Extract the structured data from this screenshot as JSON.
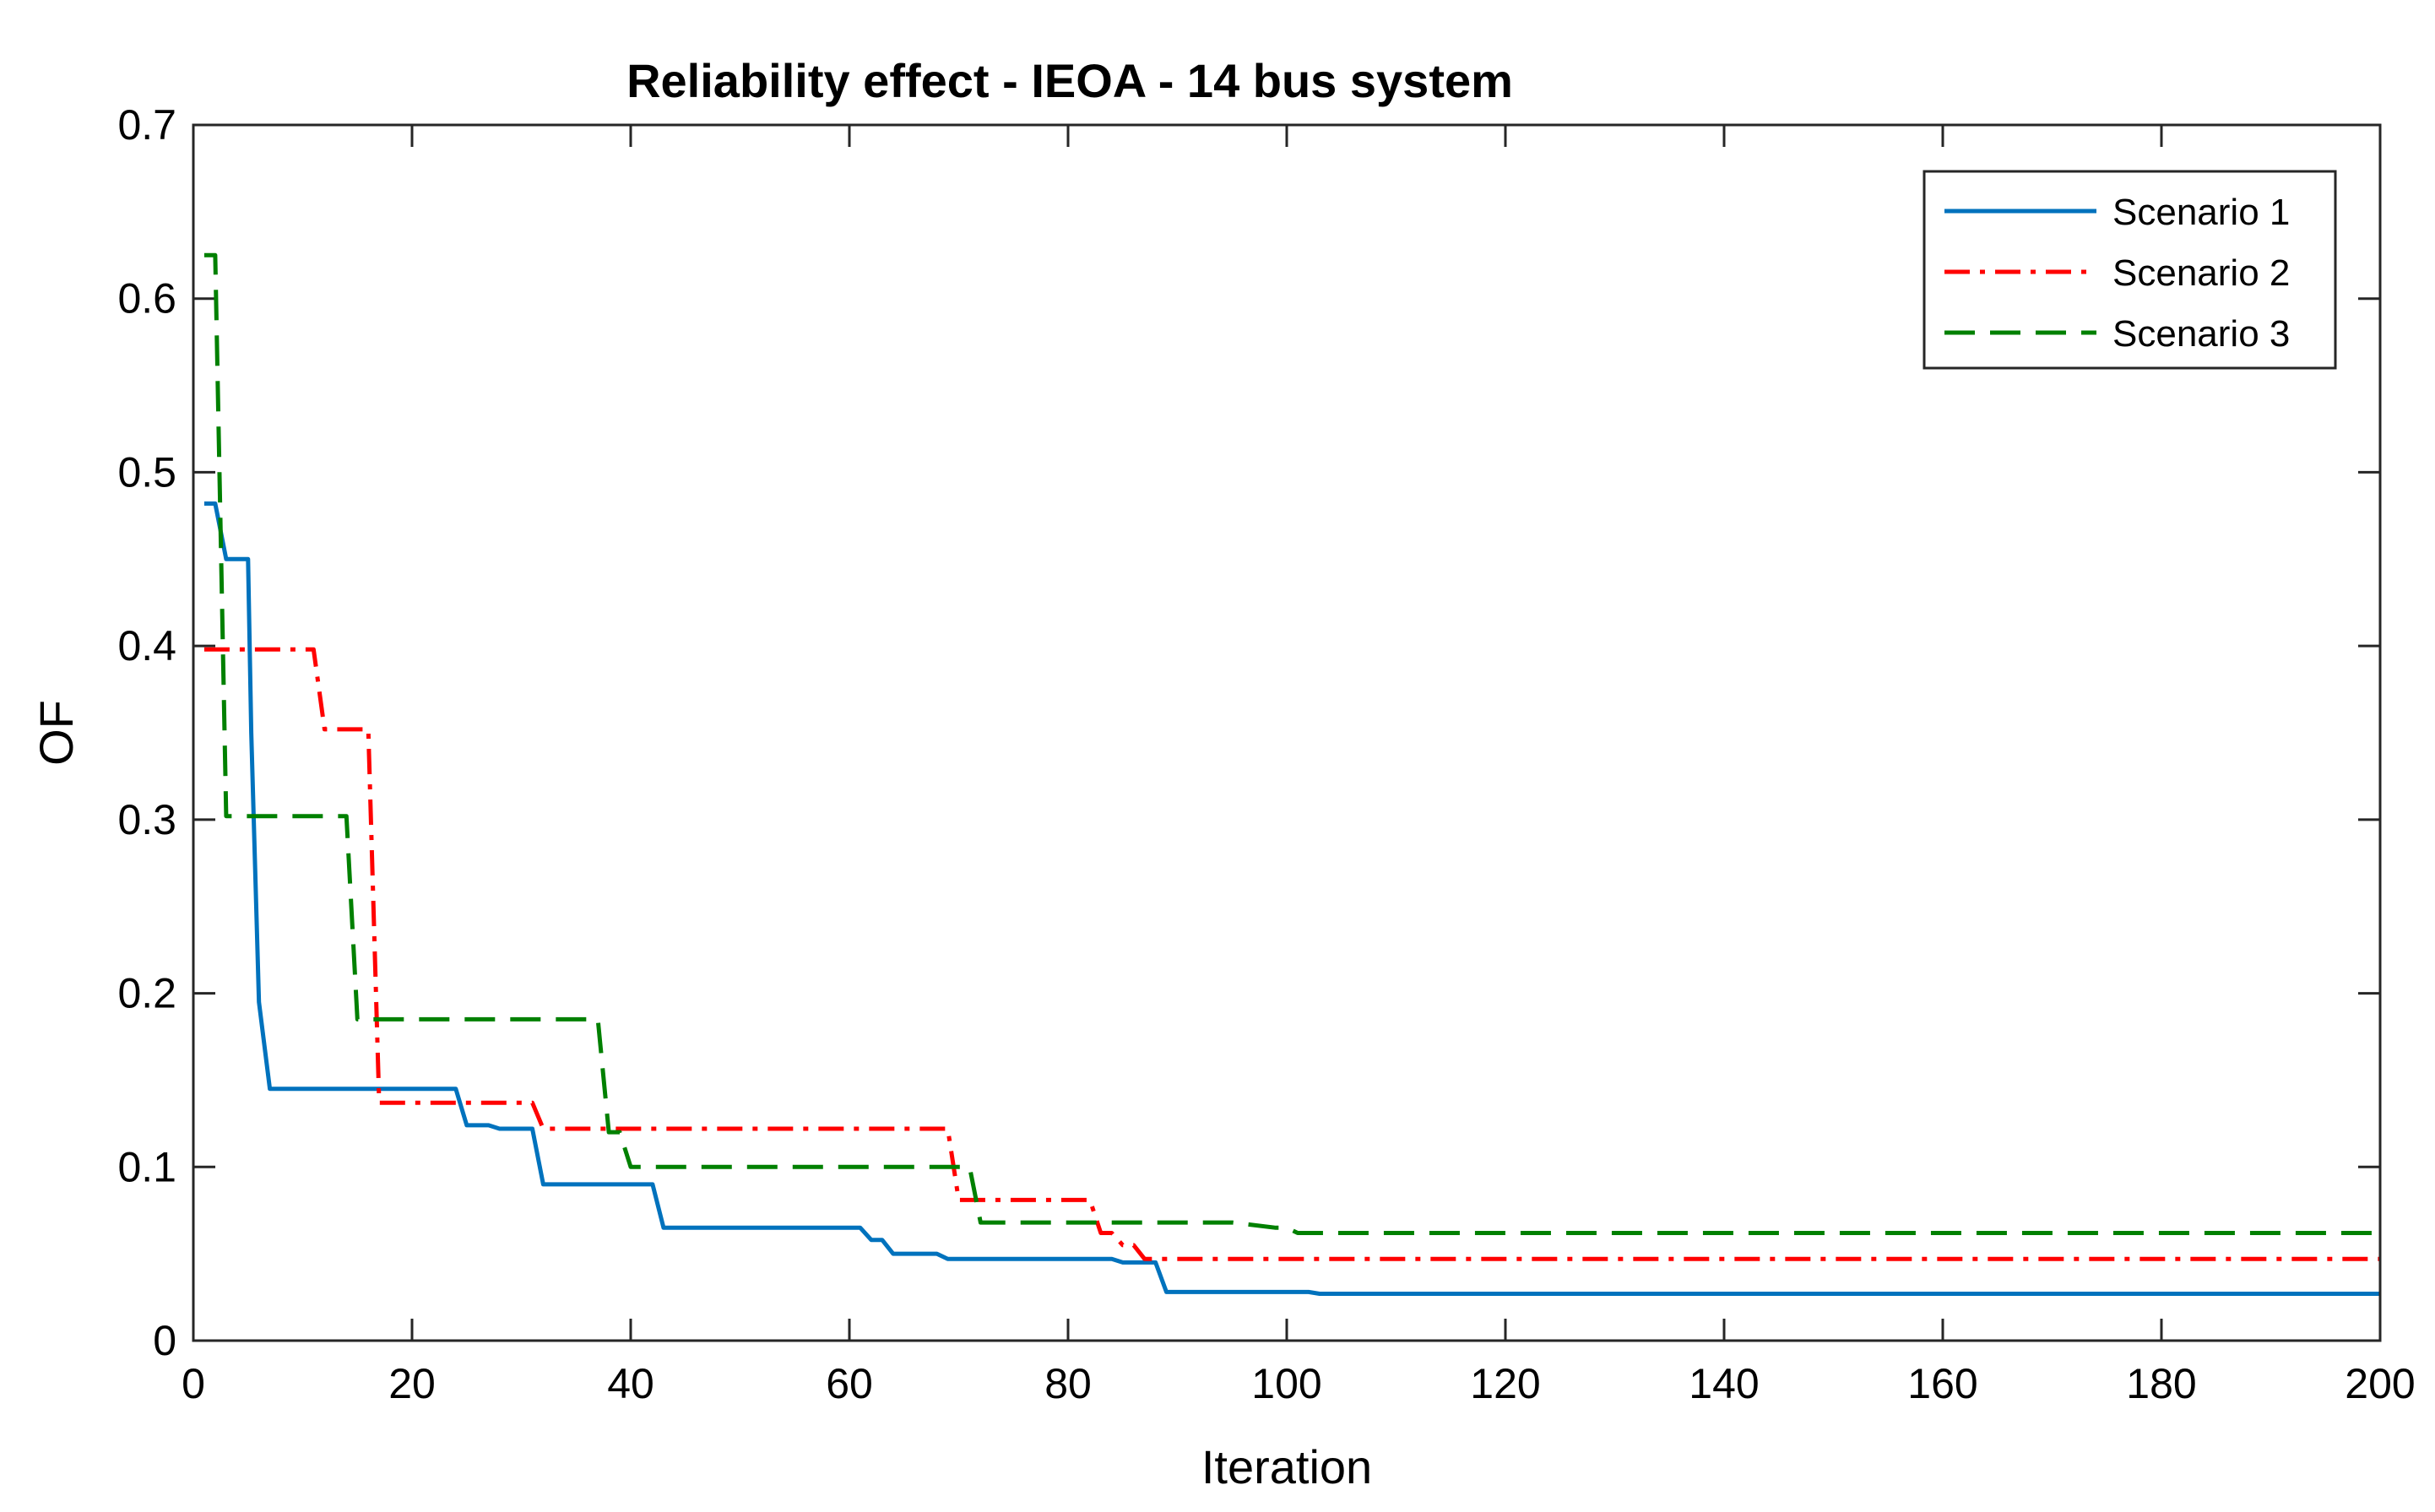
{
  "chart_data": {
    "type": "line",
    "title": "Reliability effect - IEOA - 14 bus system",
    "xlabel": "Iteration",
    "ylabel": "OF",
    "xlim": [
      0,
      200
    ],
    "ylim": [
      0,
      0.7
    ],
    "xticks": [
      0,
      20,
      40,
      60,
      80,
      100,
      120,
      140,
      160,
      180,
      200
    ],
    "yticks": [
      0,
      0.1,
      0.2,
      0.3,
      0.4,
      0.5,
      0.6,
      0.7
    ],
    "xtick_labels": [
      "0",
      "20",
      "40",
      "60",
      "80",
      "100",
      "120",
      "140",
      "160",
      "180",
      "200"
    ],
    "ytick_labels": [
      "0",
      "0.1",
      "0.2",
      "0.3",
      "0.4",
      "0.5",
      "0.6",
      "0.7"
    ],
    "grid": false,
    "legend_position": "top-right",
    "series": [
      {
        "name": "Scenario 1",
        "color": "#0072BD",
        "style": "solid",
        "points": [
          [
            1,
            0.482
          ],
          [
            2,
            0.482
          ],
          [
            3,
            0.45
          ],
          [
            5,
            0.45
          ],
          [
            5.3,
            0.35
          ],
          [
            6,
            0.195
          ],
          [
            7,
            0.145
          ],
          [
            24,
            0.145
          ],
          [
            25,
            0.124
          ],
          [
            27,
            0.124
          ],
          [
            28,
            0.122
          ],
          [
            31,
            0.122
          ],
          [
            32,
            0.09
          ],
          [
            42,
            0.09
          ],
          [
            43,
            0.065
          ],
          [
            61,
            0.065
          ],
          [
            62,
            0.058
          ],
          [
            63,
            0.058
          ],
          [
            64,
            0.05
          ],
          [
            68,
            0.05
          ],
          [
            69,
            0.047
          ],
          [
            84,
            0.047
          ],
          [
            85,
            0.045
          ],
          [
            88,
            0.045
          ],
          [
            89,
            0.028
          ],
          [
            102,
            0.028
          ],
          [
            103,
            0.027
          ],
          [
            200,
            0.027
          ]
        ]
      },
      {
        "name": "Scenario 2",
        "color": "#FF0000",
        "style": "dashdot",
        "points": [
          [
            1,
            0.398
          ],
          [
            11,
            0.398
          ],
          [
            12,
            0.352
          ],
          [
            16,
            0.352
          ],
          [
            17,
            0.137
          ],
          [
            31,
            0.137
          ],
          [
            32,
            0.122
          ],
          [
            69,
            0.122
          ],
          [
            70,
            0.081
          ],
          [
            82,
            0.081
          ],
          [
            83,
            0.062
          ],
          [
            84,
            0.062
          ],
          [
            85,
            0.055
          ],
          [
            86,
            0.055
          ],
          [
            87,
            0.047
          ],
          [
            200,
            0.047
          ]
        ]
      },
      {
        "name": "Scenario 3",
        "color": "#008000",
        "style": "dashed",
        "points": [
          [
            1,
            0.625
          ],
          [
            2,
            0.625
          ],
          [
            3,
            0.302
          ],
          [
            14,
            0.302
          ],
          [
            15,
            0.185
          ],
          [
            37,
            0.185
          ],
          [
            38,
            0.12
          ],
          [
            39,
            0.12
          ],
          [
            40,
            0.1
          ],
          [
            71,
            0.1
          ],
          [
            72,
            0.068
          ],
          [
            95,
            0.068
          ],
          [
            99,
            0.065
          ],
          [
            100,
            0.065
          ],
          [
            101,
            0.062
          ],
          [
            200,
            0.062
          ]
        ]
      }
    ]
  }
}
